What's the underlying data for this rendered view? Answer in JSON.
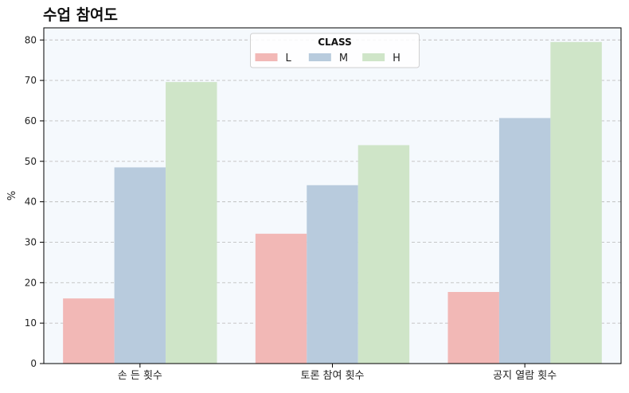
{
  "chart_data": {
    "type": "bar",
    "title": "수업 참여도",
    "xlabel": "",
    "ylabel": "%",
    "categories": [
      "손 든 횟수",
      "토론 참여 횟수",
      "공지 열람 횟수"
    ],
    "series": [
      {
        "name": "L",
        "values": [
          16.1,
          32.1,
          17.7
        ],
        "color": "#f2b8b6"
      },
      {
        "name": "M",
        "values": [
          48.5,
          44.1,
          60.7
        ],
        "color": "#b8cbdd"
      },
      {
        "name": "H",
        "values": [
          69.6,
          54.0,
          79.5
        ],
        "color": "#cfe5c8"
      }
    ],
    "ylim": [
      0,
      83
    ],
    "yticks": [
      0,
      10,
      20,
      30,
      40,
      50,
      60,
      70,
      80
    ],
    "grid": true,
    "legend": {
      "title": "CLASS",
      "placement": "top-center"
    },
    "colors": {
      "plot_background": "#f5f9fd",
      "grid": "#c0c0c0",
      "axis": "#000000"
    }
  }
}
